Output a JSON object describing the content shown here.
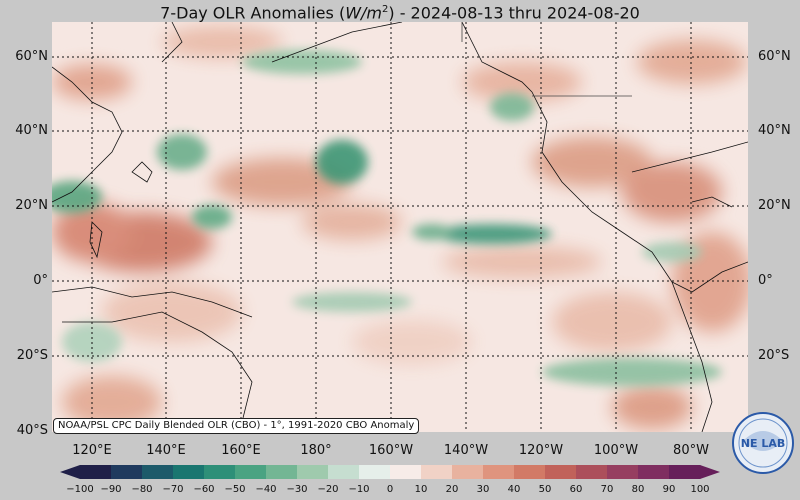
{
  "title": {
    "prefix": "7-Day OLR Anomalies (",
    "unit_base": "W/m",
    "unit_exp": "2",
    "suffix": ") - 2024-08-13 thru 2024-08-20"
  },
  "credit": "NOAA/PSL CPC Daily Blended OLR (CBO) - 1°, 1991-2020 CBO Anomaly",
  "lat_labels": [
    "60°N",
    "40°N",
    "20°N",
    "0°",
    "20°S",
    "40°S"
  ],
  "lon_labels": [
    "120°E",
    "140°E",
    "160°E",
    "180°",
    "160°W",
    "140°W",
    "120°W",
    "100°W",
    "80°W"
  ],
  "colorbar": {
    "ticks": [
      "−100",
      "−90",
      "−80",
      "−70",
      "−60",
      "−50",
      "−40",
      "−30",
      "−20",
      "−10",
      "0",
      "10",
      "20",
      "30",
      "40",
      "50",
      "60",
      "70",
      "80",
      "90",
      "100"
    ],
    "colors": [
      "#1f1f48",
      "#1f3a5e",
      "#1d5a6a",
      "#1a7670",
      "#2e8f78",
      "#4aa382",
      "#73b694",
      "#9fcaad",
      "#c6ded0",
      "#e6efea",
      "#f7ece8",
      "#f1d2c6",
      "#e8b29f",
      "#df947e",
      "#d27a66",
      "#c1625a",
      "#ac4f5b",
      "#963e60",
      "#7f2e60",
      "#661f5a"
    ]
  },
  "logo": {
    "text": "NE LAB"
  },
  "colors": {
    "background": "#c8c8c8",
    "ocean_base": "#f6e7e2",
    "positive": "#d68a72",
    "negative": "#5fae8a"
  }
}
